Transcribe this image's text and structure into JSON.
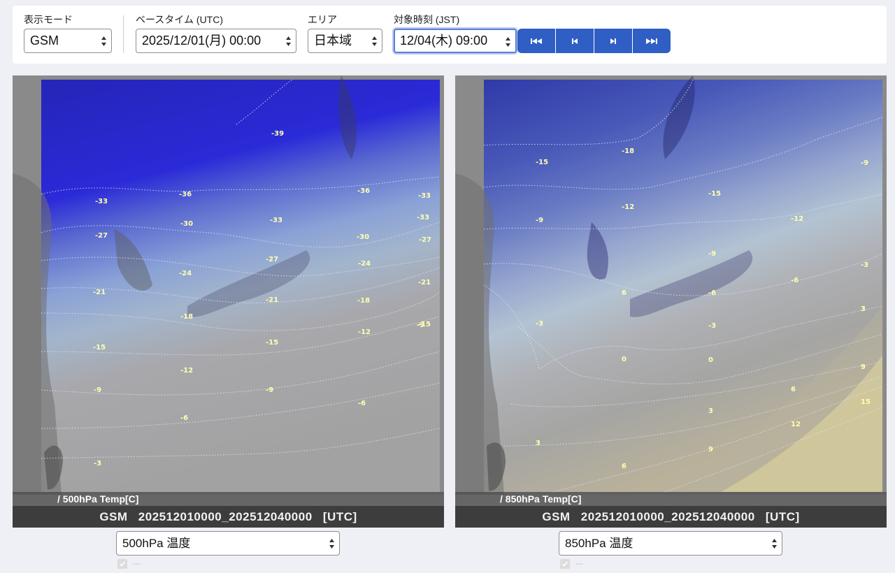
{
  "toolbar": {
    "mode": {
      "label": "表示モード",
      "value": "GSM"
    },
    "basetime": {
      "label": "ベースタイム (UTC)",
      "value": "2025/12/01(月) 00:00"
    },
    "area": {
      "label": "エリア",
      "value": "日本域"
    },
    "target": {
      "label": "対象時刻 (JST)",
      "value": "12/04(木) 09:00"
    },
    "nav": [
      "first-icon",
      "prev-icon",
      "next-icon",
      "last-icon"
    ]
  },
  "panels": [
    {
      "caption_var": "/ 500hPa Temp[C]",
      "caption_run": "GSM  202512010000_202512040000 [UTC]",
      "select_value": "500hPa 温度",
      "checkbox_text": "---",
      "contour_labels": [
        "-39",
        "-36",
        "-36",
        "-33",
        "-33",
        "-33",
        "-33",
        "-30",
        "-30",
        "-27",
        "-27",
        "-27",
        "-24",
        "-24",
        "-21",
        "-21",
        "-21",
        "-18",
        "-18",
        "-15",
        "-15",
        "-15",
        "-12",
        "-12",
        "-9",
        "-9",
        "-9",
        "-6",
        "-6",
        "-3"
      ]
    },
    {
      "caption_var": "/ 850hPa Temp[C]",
      "caption_run": "GSM  202512010000_202512040000 [UTC]",
      "select_value": "850hPa 温度",
      "checkbox_text": "---",
      "contour_labels": [
        "-18",
        "-15",
        "-15",
        "-12",
        "-12",
        "-9",
        "-9",
        "-9",
        "-6",
        "-6",
        "-3",
        "-3",
        "-3",
        "0",
        "0",
        "3",
        "3",
        "3",
        "3",
        "6",
        "6",
        "6",
        "9",
        "9",
        "12",
        "15"
      ]
    }
  ],
  "colors": {
    "accent": "#2f5ec4",
    "label": "#ffffb0",
    "caption_bg": "#3d3d3d"
  }
}
